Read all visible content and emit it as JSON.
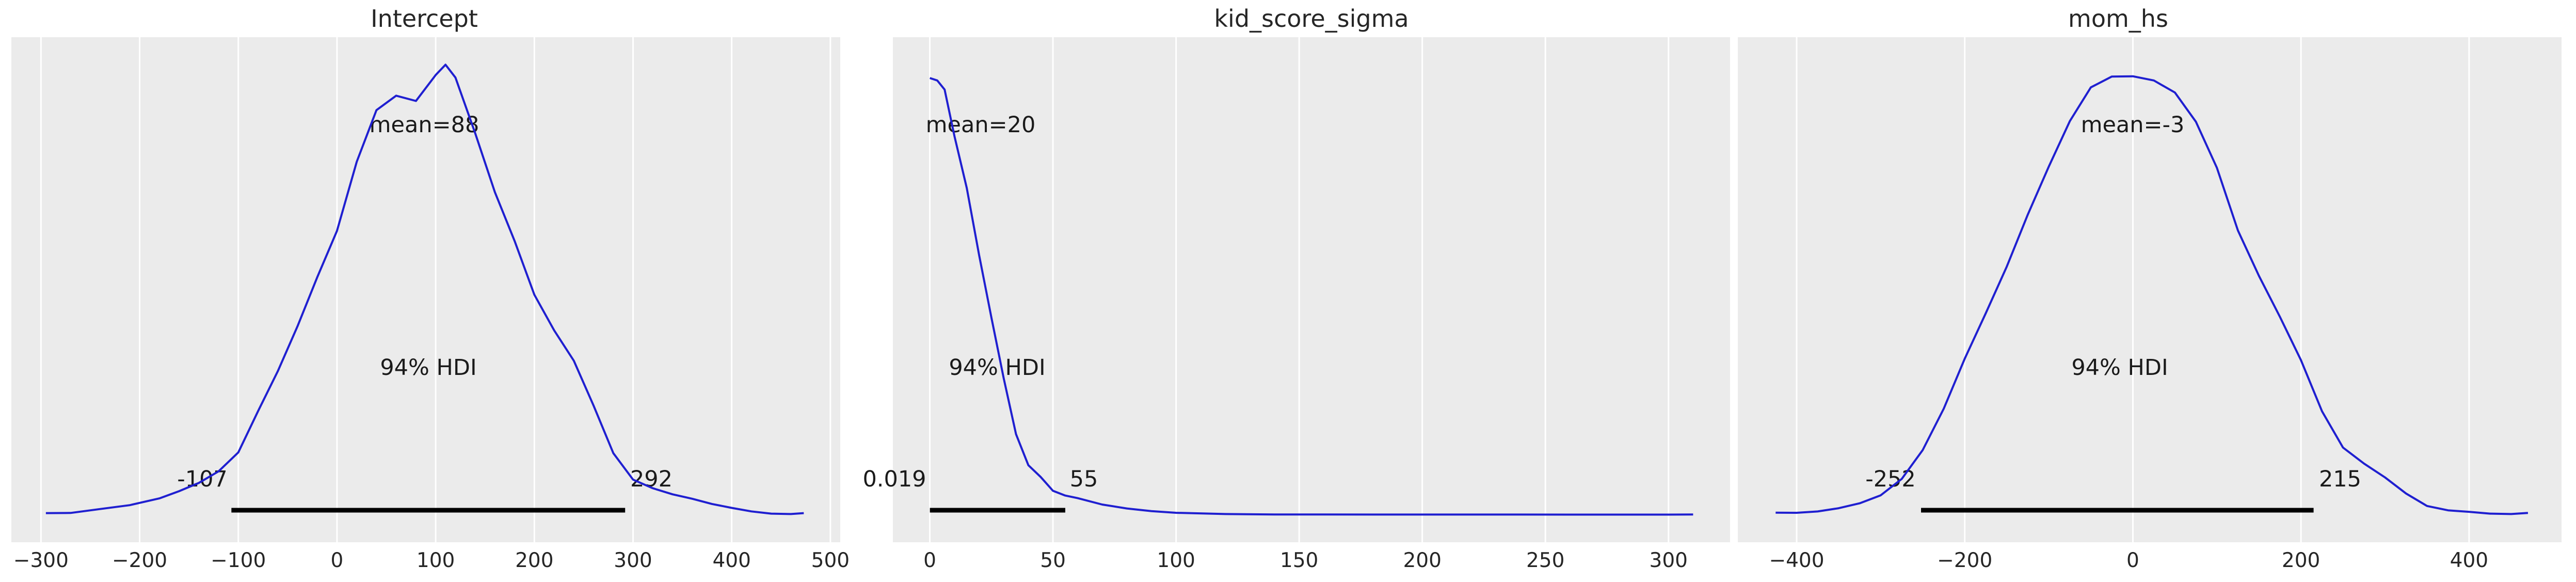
{
  "figure": {
    "style": {
      "axes_background": "#ebebeb",
      "grid_color": "#ffffff",
      "curve_color": "#1f1fd0",
      "hdi_color": "#000000"
    }
  },
  "chart_data": [
    {
      "type": "line",
      "title": "Intercept",
      "xlabel": "",
      "ylabel": "",
      "xlim": [
        -330,
        510
      ],
      "xticks": [
        -300,
        -200,
        -100,
        0,
        100,
        200,
        300,
        400,
        500
      ],
      "xtick_labels": [
        "−300",
        "−200",
        "−100",
        "0",
        "100",
        "200",
        "300",
        "400",
        "500"
      ],
      "y_ticks_shown": false,
      "grid": "vertical",
      "series": [
        {
          "kind": "kde",
          "x": [
            -295,
            -270,
            -240,
            -210,
            -180,
            -160,
            -140,
            -120,
            -100,
            -80,
            -60,
            -40,
            -20,
            0,
            20,
            40,
            60,
            80,
            100,
            110,
            120,
            140,
            160,
            180,
            200,
            220,
            240,
            260,
            280,
            300,
            320,
            340,
            360,
            380,
            400,
            420,
            440,
            460,
            473
          ],
          "y": [
            0.0058,
            0.006,
            0.0107,
            0.0154,
            0.0235,
            0.0322,
            0.0421,
            0.056,
            0.0787,
            0.1283,
            0.1762,
            0.2303,
            0.2891,
            0.3448,
            0.4278,
            0.4898,
            0.5071,
            0.5008,
            0.5319,
            0.5443,
            0.5289,
            0.4622,
            0.3913,
            0.3326,
            0.2681,
            0.2255,
            0.1888,
            0.135,
            0.0778,
            0.0461,
            0.0357,
            0.0284,
            0.0231,
            0.0168,
            0.0121,
            0.0079,
            0.0052,
            0.0047,
            0.0058
          ]
        }
      ],
      "mean_label": "mean=88",
      "hdi": {
        "prob_label": "94% HDI",
        "low": -107,
        "high": 292,
        "low_label": "-107",
        "high_label": "292"
      }
    },
    {
      "type": "line",
      "title": "kid_score_sigma",
      "xlabel": "",
      "ylabel": "",
      "xlim": [
        -15,
        325
      ],
      "xticks": [
        0,
        50,
        100,
        150,
        200,
        250,
        300
      ],
      "xtick_labels": [
        "0",
        "50",
        "100",
        "150",
        "200",
        "250",
        "300"
      ],
      "y_ticks_shown": false,
      "grid": "vertical",
      "series": [
        {
          "kind": "kde",
          "x": [
            0,
            3,
            6,
            10,
            15,
            20,
            25,
            30,
            35,
            40,
            45,
            50,
            55,
            60,
            70,
            80,
            90,
            100,
            120,
            140,
            160,
            180,
            200,
            220,
            240,
            260,
            280,
            300,
            310
          ],
          "y": [
            0.5283,
            0.5254,
            0.5144,
            0.4584,
            0.3963,
            0.3158,
            0.2408,
            0.1677,
            0.1007,
            0.0634,
            0.0493,
            0.0326,
            0.0269,
            0.0238,
            0.0161,
            0.0114,
            0.0082,
            0.0062,
            0.0047,
            0.0042,
            0.0042,
            0.0041,
            0.0041,
            0.0041,
            0.0041,
            0.004,
            0.004,
            0.004,
            0.0042
          ]
        }
      ],
      "mean_label": "mean=20",
      "hdi": {
        "prob_label": "94% HDI",
        "low": 0.019,
        "high": 55,
        "low_label": "0.019",
        "high_label": "55"
      }
    },
    {
      "type": "line",
      "title": "mom_hs",
      "xlabel": "",
      "ylabel": "",
      "xlim": [
        -470,
        510
      ],
      "xticks": [
        -400,
        -200,
        0,
        200,
        400
      ],
      "xtick_labels": [
        "−400",
        "−200",
        "0",
        "200",
        "400"
      ],
      "y_ticks_shown": false,
      "grid": "vertical",
      "series": [
        {
          "kind": "kde",
          "x": [
            -425,
            -400,
            -375,
            -350,
            -325,
            -300,
            -275,
            -250,
            -225,
            -200,
            -175,
            -150,
            -125,
            -100,
            -75,
            -50,
            -25,
            0,
            25,
            50,
            75,
            100,
            125,
            150,
            175,
            200,
            225,
            250,
            275,
            300,
            325,
            350,
            375,
            400,
            425,
            450,
            470
          ],
          "y": [
            0.0063,
            0.0062,
            0.0078,
            0.0117,
            0.0176,
            0.0272,
            0.0469,
            0.0816,
            0.1312,
            0.1913,
            0.2458,
            0.3018,
            0.3644,
            0.4221,
            0.4765,
            0.5171,
            0.5301,
            0.5304,
            0.5254,
            0.5109,
            0.4758,
            0.4204,
            0.3452,
            0.2907,
            0.2415,
            0.1895,
            0.1281,
            0.0845,
            0.0653,
            0.0487,
            0.0294,
            0.0144,
            0.0092,
            0.0074,
            0.0052,
            0.0047,
            0.006
          ]
        }
      ],
      "mean_label": "mean=-3",
      "hdi": {
        "prob_label": "94% HDI",
        "low": -252,
        "high": 215,
        "low_label": "-252",
        "high_label": "215"
      }
    }
  ]
}
